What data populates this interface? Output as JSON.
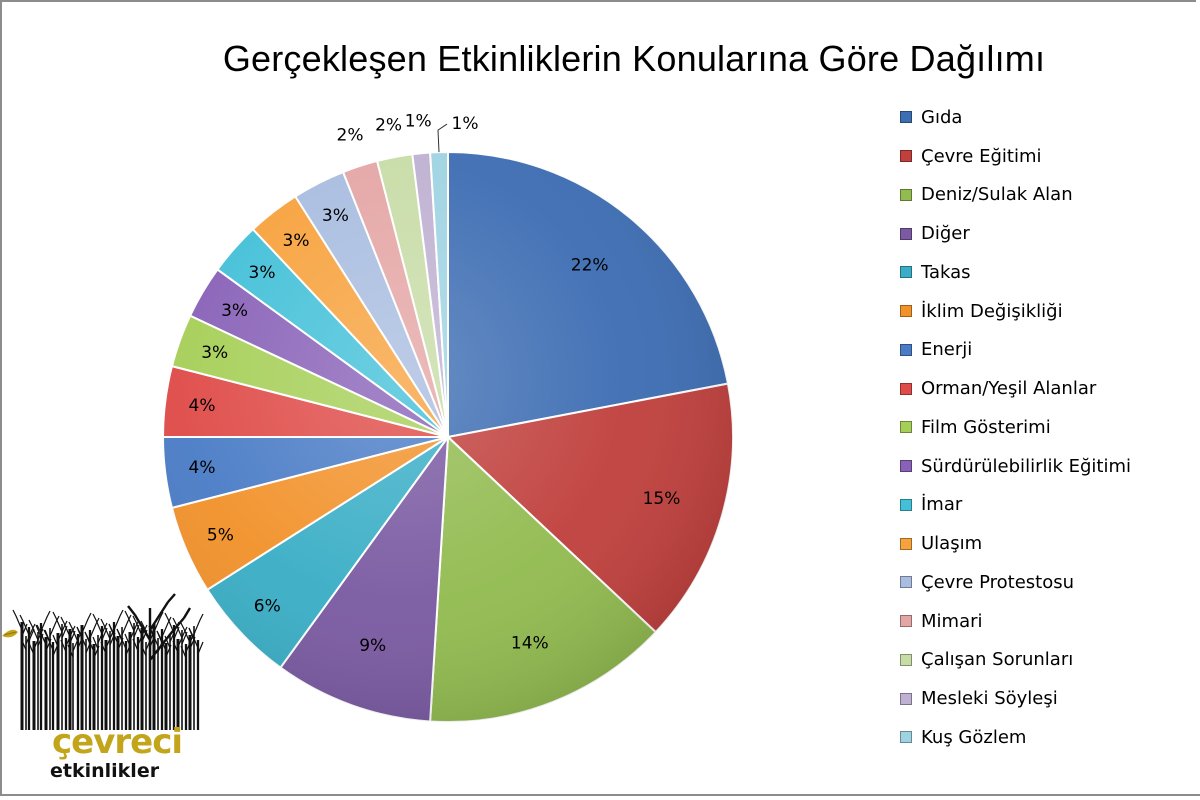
{
  "chart_data": {
    "type": "pie",
    "title": "Gerçekleşen Etkinliklerin Konularına Göre Dağılımı",
    "legend_position": "right",
    "slices": [
      {
        "label": "Gıda",
        "value": 22,
        "display": "22%",
        "color": "#3d6db3"
      },
      {
        "label": "Çevre Eğitimi",
        "value": 15,
        "display": "15%",
        "color": "#c0403d"
      },
      {
        "label": "Deniz/Sulak Alan",
        "value": 14,
        "display": "14%",
        "color": "#92bb50"
      },
      {
        "label": "Diğer",
        "value": 9,
        "display": "9%",
        "color": "#7a5aa2"
      },
      {
        "label": "Takas",
        "value": 6,
        "display": "6%",
        "color": "#3aaec6"
      },
      {
        "label": "İklim Değişikliği",
        "value": 5,
        "display": "5%",
        "color": "#f2922b"
      },
      {
        "label": "Enerji",
        "value": 4,
        "display": "4%",
        "color": "#4a7cc6"
      },
      {
        "label": "Orman/Yeşil Alanlar",
        "value": 4,
        "display": "4%",
        "color": "#df4b48"
      },
      {
        "label": "Film Gösterimi",
        "value": 3,
        "display": "3%",
        "color": "#a6cf58"
      },
      {
        "label": "Sürdürülebilirlik Eğitimi",
        "value": 3,
        "display": "3%",
        "color": "#8962b8"
      },
      {
        "label": "İmar",
        "value": 3,
        "display": "3%",
        "color": "#43c0d8"
      },
      {
        "label": "Ulaşım",
        "value": 3,
        "display": "3%",
        "color": "#f7a23d"
      },
      {
        "label": "Çevre Protestosu",
        "value": 3,
        "display": "3%",
        "color": "#a9bde0"
      },
      {
        "label": "Mimari",
        "value": 2,
        "display": "2%",
        "color": "#e4a6a5"
      },
      {
        "label": "Çalışan Sorunları",
        "value": 2,
        "display": "2%",
        "color": "#c8dca7"
      },
      {
        "label": "Mesleki Söyleşi",
        "value": 1,
        "display": "1%",
        "color": "#bfb1d2"
      },
      {
        "label": "Kuş Gözlem",
        "value": 1,
        "display": "1%",
        "color": "#9fd3e2"
      }
    ]
  },
  "logo": {
    "title": "çevreci",
    "subtitle": "etkinlikler",
    "accent_color": "#c3a51b"
  }
}
